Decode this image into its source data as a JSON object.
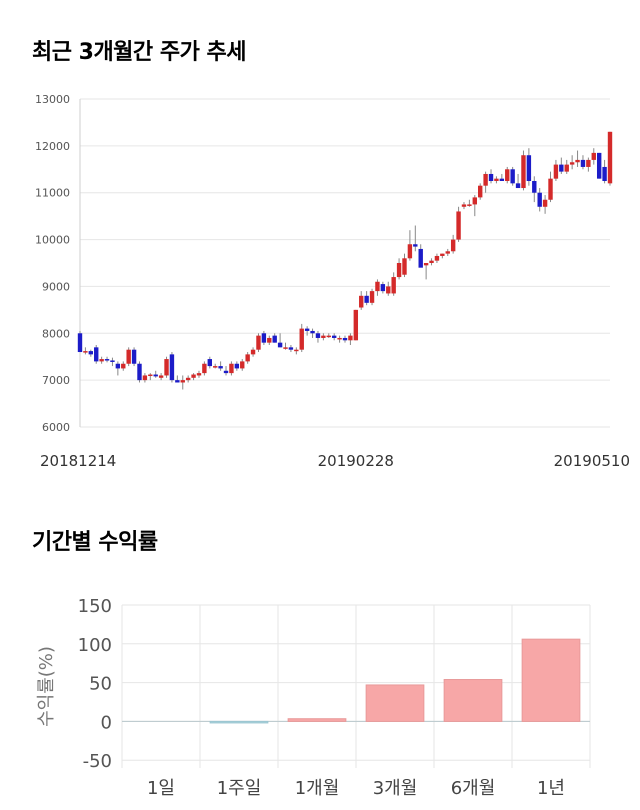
{
  "sections": {
    "price_title": "최근 3개월간 주가 추세",
    "return_title": "기간별 수익률"
  },
  "colors": {
    "up": "#d42a2a",
    "down": "#1c1cc8",
    "bar": "#f7a7a7",
    "bar_neg": "#a9d3de"
  },
  "chart_data": [
    {
      "type": "candlestick",
      "title": "최근 3개월간 주가 추세",
      "ylim": [
        6000,
        13000
      ],
      "yticks": [
        6000,
        7000,
        8000,
        9000,
        10000,
        11000,
        12000,
        13000
      ],
      "xtick_labels": [
        {
          "index": 0,
          "label": "20181214"
        },
        {
          "index": 51,
          "label": "20190228"
        },
        {
          "index": 98,
          "label": "20190510"
        }
      ],
      "ohlc": [
        [
          8000,
          8050,
          7600,
          7600
        ],
        [
          7600,
          7700,
          7550,
          7620
        ],
        [
          7620,
          7650,
          7500,
          7550
        ],
        [
          7700,
          7750,
          7350,
          7400
        ],
        [
          7400,
          7500,
          7350,
          7450
        ],
        [
          7450,
          7500,
          7380,
          7420
        ],
        [
          7420,
          7480,
          7300,
          7400
        ],
        [
          7350,
          7400,
          7100,
          7250
        ],
        [
          7250,
          7400,
          7200,
          7350
        ],
        [
          7350,
          7700,
          7300,
          7650
        ],
        [
          7650,
          7700,
          7300,
          7350
        ],
        [
          7350,
          7400,
          6950,
          7000
        ],
        [
          7000,
          7150,
          6950,
          7100
        ],
        [
          7100,
          7150,
          7000,
          7120
        ],
        [
          7120,
          7200,
          7050,
          7080
        ],
        [
          7050,
          7150,
          7000,
          7100
        ],
        [
          7100,
          7500,
          7050,
          7450
        ],
        [
          7550,
          7600,
          6950,
          7000
        ],
        [
          7000,
          7100,
          6950,
          6950
        ],
        [
          6950,
          7100,
          6800,
          7000
        ],
        [
          7000,
          7100,
          6950,
          7050
        ],
        [
          7050,
          7150,
          7000,
          7120
        ],
        [
          7100,
          7200,
          7050,
          7150
        ],
        [
          7150,
          7400,
          7100,
          7350
        ],
        [
          7450,
          7500,
          7250,
          7300
        ],
        [
          7300,
          7350,
          7250,
          7300
        ],
        [
          7300,
          7400,
          7200,
          7250
        ],
        [
          7200,
          7300,
          7100,
          7150
        ],
        [
          7150,
          7400,
          7100,
          7350
        ],
        [
          7350,
          7400,
          7200,
          7250
        ],
        [
          7250,
          7450,
          7200,
          7400
        ],
        [
          7400,
          7600,
          7350,
          7550
        ],
        [
          7550,
          7700,
          7500,
          7650
        ],
        [
          7650,
          8000,
          7600,
          7950
        ],
        [
          8000,
          8050,
          7750,
          7800
        ],
        [
          7800,
          7950,
          7750,
          7900
        ],
        [
          7950,
          8000,
          7800,
          7800
        ],
        [
          7800,
          8000,
          7700,
          7700
        ],
        [
          7700,
          7800,
          7650,
          7700
        ],
        [
          7700,
          7750,
          7600,
          7650
        ],
        [
          7650,
          7700,
          7550,
          7650
        ],
        [
          7650,
          8200,
          7600,
          8100
        ],
        [
          8100,
          8150,
          7950,
          8050
        ],
        [
          8050,
          8100,
          7900,
          8000
        ],
        [
          8000,
          8050,
          7800,
          7900
        ],
        [
          7900,
          8000,
          7850,
          7950
        ],
        [
          7950,
          8000,
          7900,
          7950
        ],
        [
          7950,
          8000,
          7850,
          7900
        ],
        [
          7900,
          7950,
          7800,
          7900
        ],
        [
          7900,
          7950,
          7800,
          7850
        ],
        [
          7850,
          8000,
          7750,
          7950
        ],
        [
          7850,
          8500,
          7850,
          8500
        ],
        [
          8550,
          8900,
          8500,
          8800
        ],
        [
          8800,
          8900,
          8600,
          8650
        ],
        [
          8650,
          8950,
          8600,
          8900
        ],
        [
          8900,
          9150,
          8800,
          9100
        ],
        [
          9050,
          9100,
          8850,
          8900
        ],
        [
          8850,
          9100,
          8800,
          9000
        ],
        [
          8850,
          9300,
          8800,
          9200
        ],
        [
          9200,
          9600,
          9150,
          9500
        ],
        [
          9250,
          9700,
          9200,
          9600
        ],
        [
          9600,
          10200,
          9550,
          9900
        ],
        [
          9900,
          10300,
          9750,
          9850
        ],
        [
          9800,
          9900,
          9450,
          9400
        ],
        [
          9450,
          9500,
          9150,
          9500
        ],
        [
          9500,
          9600,
          9450,
          9550
        ],
        [
          9550,
          9700,
          9500,
          9650
        ],
        [
          9650,
          9700,
          9600,
          9700
        ],
        [
          9700,
          9800,
          9650,
          9750
        ],
        [
          9750,
          10100,
          9700,
          10000
        ],
        [
          10000,
          10700,
          9950,
          10600
        ],
        [
          10700,
          10800,
          10650,
          10750
        ],
        [
          10750,
          10850,
          10700,
          10750
        ],
        [
          10750,
          10950,
          10500,
          10900
        ],
        [
          10900,
          11200,
          10850,
          11150
        ],
        [
          11150,
          11450,
          11000,
          11400
        ],
        [
          11400,
          11500,
          11200,
          11250
        ],
        [
          11250,
          11350,
          11200,
          11300
        ],
        [
          11300,
          11400,
          11250,
          11250
        ],
        [
          11250,
          11550,
          11200,
          11500
        ],
        [
          11500,
          11550,
          11150,
          11200
        ],
        [
          11200,
          11400,
          11100,
          11100
        ],
        [
          11100,
          11900,
          11050,
          11800
        ],
        [
          11800,
          11950,
          11150,
          11250
        ],
        [
          11250,
          11350,
          10800,
          11000
        ],
        [
          11000,
          11100,
          10600,
          10700
        ],
        [
          10700,
          10950,
          10550,
          10850
        ],
        [
          10850,
          11450,
          10800,
          11300
        ],
        [
          11300,
          11700,
          11250,
          11600
        ],
        [
          11600,
          11750,
          11400,
          11450
        ],
        [
          11450,
          11700,
          11400,
          11600
        ],
        [
          11600,
          11800,
          11500,
          11650
        ],
        [
          11650,
          11900,
          11550,
          11700
        ],
        [
          11700,
          11800,
          11500,
          11550
        ],
        [
          11550,
          11750,
          11450,
          11700
        ],
        [
          11700,
          11950,
          11600,
          11850
        ],
        [
          11850,
          11850,
          11300,
          11300
        ],
        [
          11550,
          11700,
          11200,
          11250
        ],
        [
          11200,
          12300,
          11150,
          12300
        ]
      ]
    },
    {
      "type": "bar",
      "title": "기간별 수익률",
      "ylabel": "수익률(%)",
      "ylim": [
        -60,
        150
      ],
      "yticks": [
        -50,
        0,
        50,
        100,
        150
      ],
      "categories": [
        "1일",
        "1주일",
        "1개월",
        "3개월",
        "6개월",
        "1년"
      ],
      "values": [
        0,
        -1.5,
        3.5,
        47,
        54,
        106
      ]
    }
  ]
}
